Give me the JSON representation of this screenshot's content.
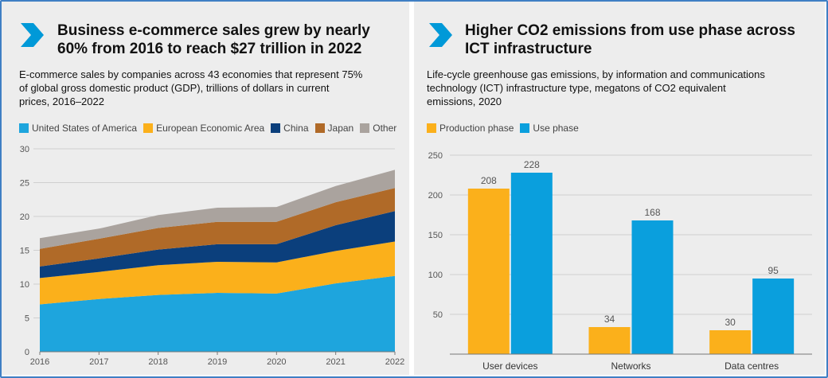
{
  "panels": [
    {
      "title_line1": "Business e-commerce sales grew by nearly",
      "title_line2": "60% from 2016 to reach $27 trillion in 2022",
      "subtitle_line1": "E-commerce sales by companies across 43 economies that represent 75%",
      "subtitle_line2": "of global gross domestic product (GDP), trillions of dollars in current",
      "subtitle_line3": "prices, 2016–2022"
    },
    {
      "title_line1": "Higher CO2 emissions from use phase across",
      "title_line2": "ICT infrastructure",
      "subtitle_line1": "Life-cycle greenhouse gas emissions, by information and communications",
      "subtitle_line2": "technology (ICT) infrastructure type, megatons of CO2 equivalent",
      "subtitle_line3": "emissions, 2020"
    }
  ],
  "colors": {
    "accent": "#0099d8",
    "us": "#1ea5dd",
    "eea": "#fbb01b",
    "china": "#0b3f7c",
    "japan": "#b06a28",
    "other": "#aaa39e",
    "production": "#fbb01b",
    "use": "#0a9fdd"
  },
  "chart_data": [
    {
      "type": "area",
      "stacked": true,
      "x": [
        2016,
        2017,
        2018,
        2019,
        2020,
        2021,
        2022
      ],
      "ylim": [
        0,
        30
      ],
      "yticks": [
        0,
        5,
        10,
        15,
        20,
        25,
        30
      ],
      "grid": true,
      "legend": "top",
      "series": [
        {
          "name": "United States of America",
          "color_key": "us",
          "values": [
            7.0,
            7.8,
            8.4,
            8.7,
            8.6,
            10.1,
            11.2
          ]
        },
        {
          "name": "European Economic Area",
          "color_key": "eea",
          "values": [
            3.9,
            4.0,
            4.4,
            4.6,
            4.6,
            4.8,
            5.1
          ]
        },
        {
          "name": "China",
          "color_key": "china",
          "values": [
            1.7,
            2.0,
            2.3,
            2.6,
            2.7,
            3.8,
            4.5
          ]
        },
        {
          "name": "Japan",
          "color_key": "japan",
          "values": [
            2.6,
            2.9,
            3.2,
            3.3,
            3.3,
            3.4,
            3.4
          ]
        },
        {
          "name": "Other",
          "color_key": "other",
          "values": [
            1.6,
            1.5,
            1.9,
            2.1,
            2.2,
            2.4,
            2.7
          ]
        }
      ]
    },
    {
      "type": "bar",
      "categories": [
        "User devices",
        "Networks",
        "Data centres"
      ],
      "ylim": [
        0,
        250
      ],
      "yticks": [
        50,
        100,
        150,
        200,
        250
      ],
      "grid": true,
      "legend": "top",
      "series": [
        {
          "name": "Production phase",
          "color_key": "production",
          "values": [
            208,
            34,
            30
          ]
        },
        {
          "name": "Use phase",
          "color_key": "use",
          "values": [
            228,
            168,
            95
          ]
        }
      ]
    }
  ]
}
